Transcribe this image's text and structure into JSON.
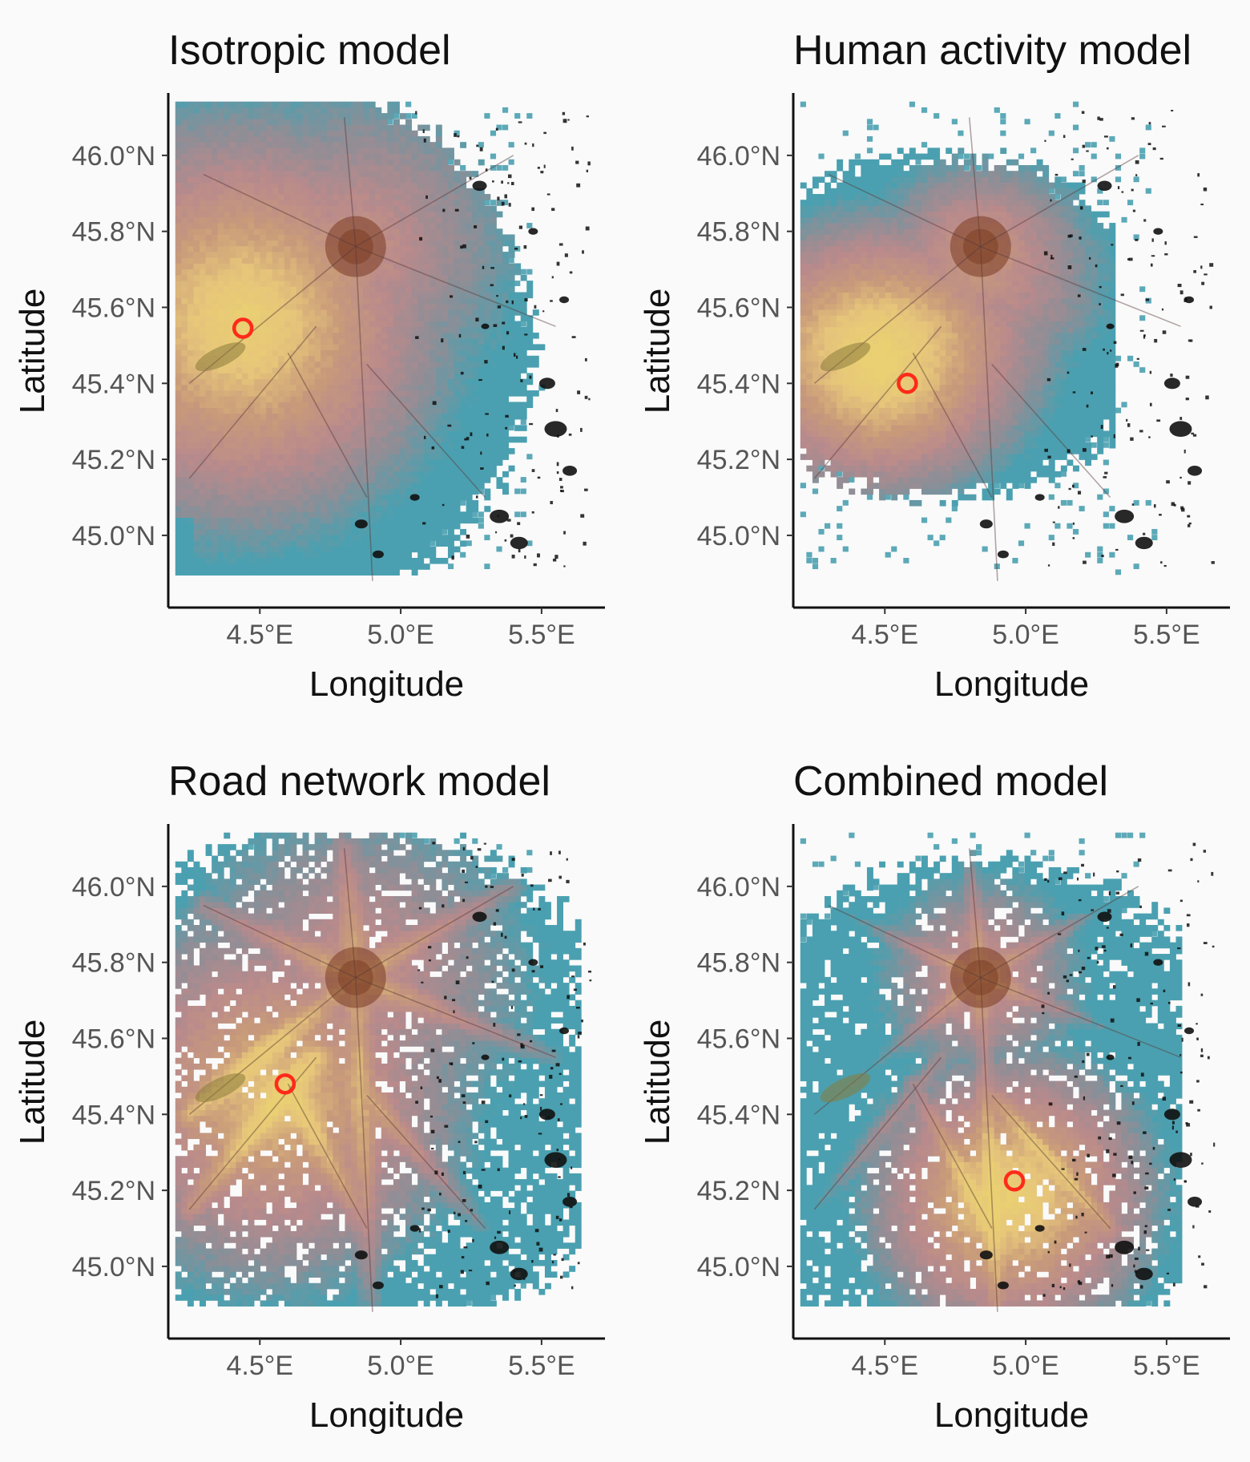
{
  "figure": {
    "panels": [
      {
        "title": "Isotropic model",
        "marker": {
          "lon": 4.44,
          "lat": 45.545
        },
        "hot": {
          "lon": 4.44,
          "lat": 45.56
        },
        "mode": "iso"
      },
      {
        "title": "Human activity model",
        "marker": {
          "lon": 4.58,
          "lat": 45.4
        },
        "hot": {
          "lon": 4.48,
          "lat": 45.45
        },
        "mode": "human"
      },
      {
        "title": "Road network model",
        "marker": {
          "lon": 4.59,
          "lat": 45.48
        },
        "hot": {
          "lon": 4.55,
          "lat": 45.45
        },
        "mode": "road"
      },
      {
        "title": "Combined model",
        "marker": {
          "lon": 4.96,
          "lat": 45.225
        },
        "hot": {
          "lon": 4.95,
          "lat": 45.18
        },
        "mode": "combined"
      }
    ],
    "xaxis": {
      "title": "Longitude",
      "ticks": [
        4.5,
        5.0,
        5.5
      ],
      "tick_labels": [
        "4.5°E",
        "5.0°E",
        "5.5°E"
      ],
      "range": [
        4.175,
        5.725
      ]
    },
    "yaxis": {
      "title": "Latitude",
      "ticks": [
        45.0,
        45.2,
        45.4,
        45.6,
        45.8,
        46.0
      ],
      "tick_labels": [
        "45.0°N",
        "45.2°N",
        "45.4°N",
        "45.6°N",
        "45.8°N",
        "46.0°N"
      ],
      "range": [
        44.81,
        46.16
      ]
    },
    "city": {
      "lon": 4.84,
      "lat": 45.76
    },
    "colors": {
      "background": "#fafafa",
      "low": "#4aa0b0",
      "mid_low": "#8e8e96",
      "mid": "#b98a8c",
      "mid_high": "#c89a7a",
      "high": "#e6c57a",
      "peak": "#ead072",
      "city": "#7a3a22",
      "marker": "#ff2a1a",
      "urban": "#111111"
    }
  }
}
